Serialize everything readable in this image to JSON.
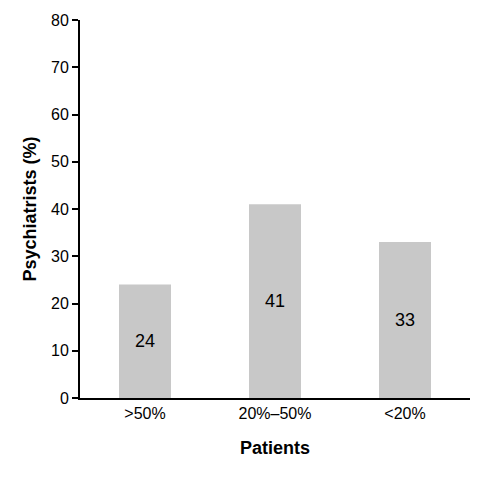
{
  "chart_data": {
    "type": "bar",
    "x_label": "Patients",
    "y_label": "Psychiatrists (%)",
    "categories": [
      ">50%",
      "20%–50%",
      "<20%"
    ],
    "values": [
      24,
      41,
      33
    ],
    "color": "#c8c8c8",
    "ylim": [
      0,
      80
    ],
    "yticks": [
      0,
      10,
      20,
      30,
      40,
      50,
      60,
      70,
      80
    ],
    "grid": false,
    "data_labels": true
  }
}
